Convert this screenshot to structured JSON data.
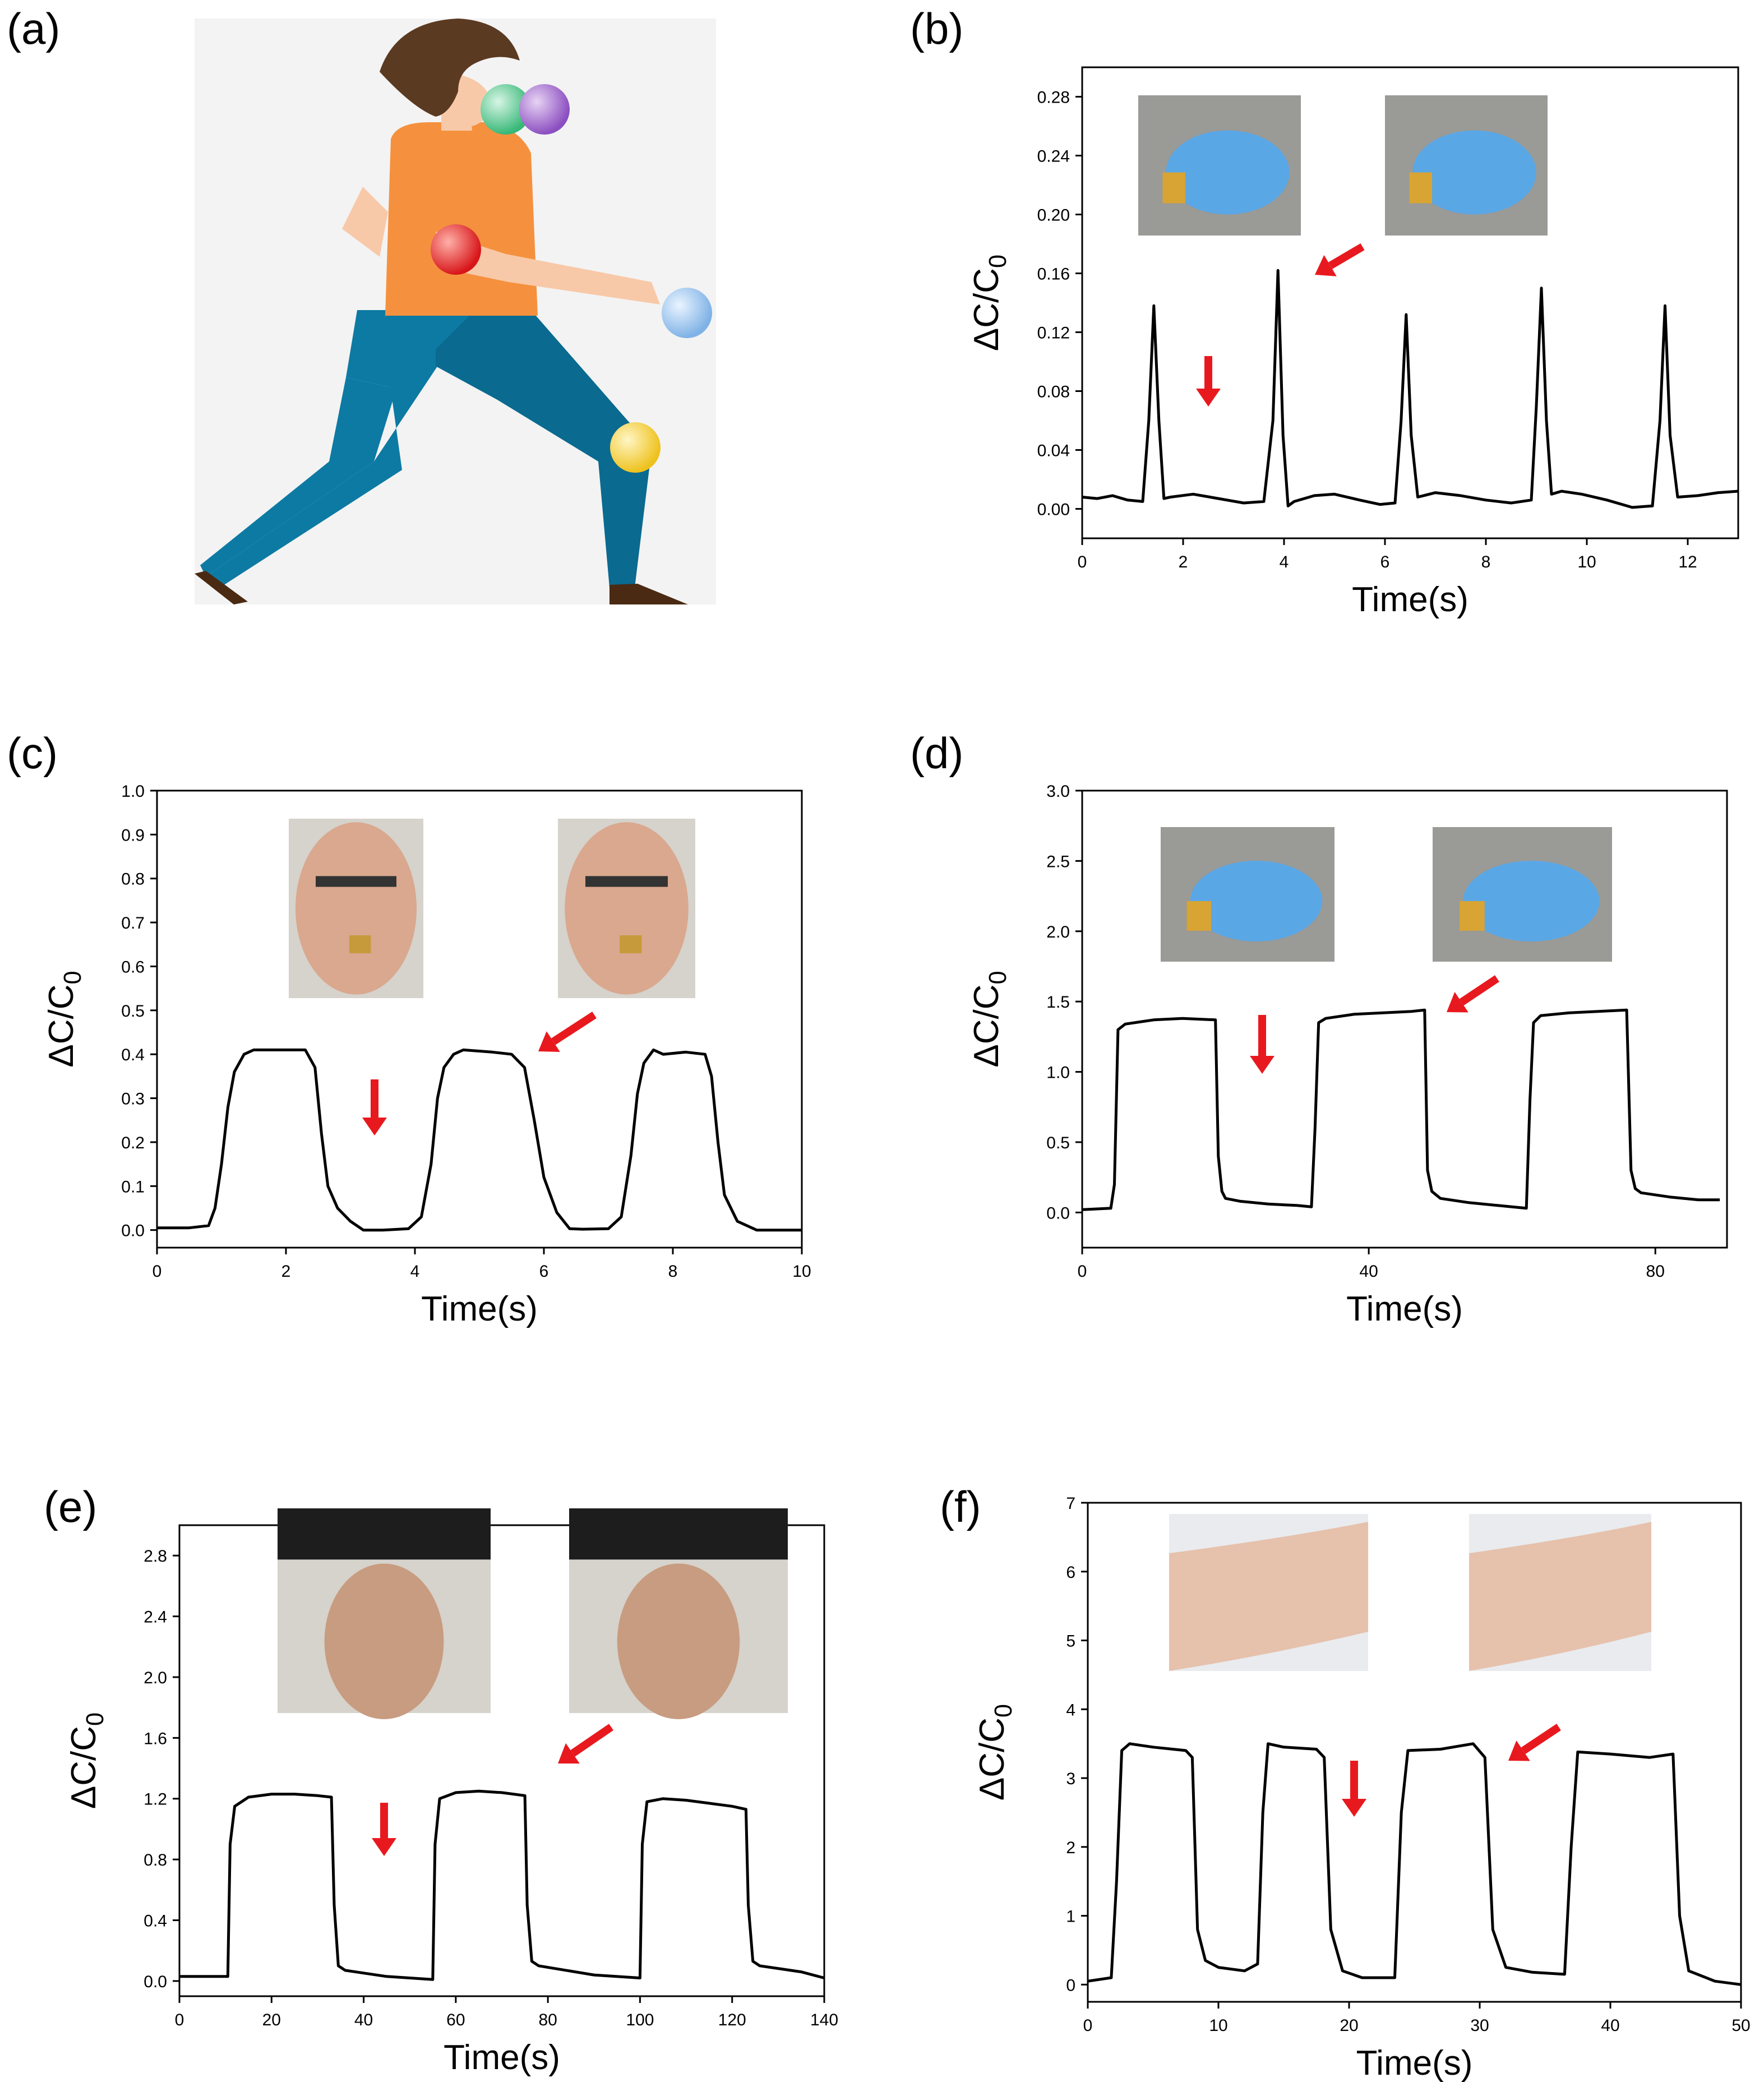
{
  "panel_labels": {
    "a": "(a)",
    "b": "(b)",
    "c": "(c)",
    "d": "(d)",
    "e": "(e)",
    "f": "(f)"
  },
  "colors": {
    "axis": "#000000",
    "trace": "#000000",
    "arrow": "#e8191e",
    "shirt": "#f5913e",
    "pants": "#0d7aa3",
    "pants_dark": "#0a6a90",
    "skin": "#f8c9a8",
    "hair": "#5b3a22",
    "shoe": "#4a2a12",
    "sphere_green": "#55c98a",
    "sphere_purple": "#a36ad0",
    "sphere_red": "#e52a2a",
    "sphere_blue": "#9cc7ee",
    "sphere_yellow": "#f5d545",
    "glove": "#5aa7e6",
    "skin_photo": "#d9a88e"
  },
  "chart_data": [
    {
      "id": "b",
      "type": "line",
      "xlabel": "Time(s)",
      "ylabel_main": "ΔC/C",
      "ylabel_sub": "0",
      "xlim": [
        0,
        13
      ],
      "ylim": [
        -0.02,
        0.3
      ],
      "xticks": [
        0,
        2,
        4,
        6,
        8,
        10,
        12
      ],
      "xtick_labels": [
        "0",
        "2",
        "4",
        "6",
        "8",
        "10",
        "12"
      ],
      "yticks": [
        0,
        0.04,
        0.08,
        0.12,
        0.16,
        0.2,
        0.24,
        0.28
      ],
      "ytick_labels": [
        "0.00",
        "0.04",
        "0.08",
        "0.12",
        "0.16",
        "0.20",
        "0.24",
        "0.28"
      ],
      "series": [
        {
          "x": [
            0,
            0.3,
            0.6,
            0.9,
            1.2,
            1.32,
            1.42,
            1.52,
            1.62,
            1.75,
            2.2,
            2.7,
            3.2,
            3.6,
            3.78,
            3.88,
            3.98,
            4.08,
            4.2,
            4.6,
            5.0,
            5.5,
            5.9,
            6.2,
            6.32,
            6.42,
            6.52,
            6.65,
            7.0,
            7.5,
            8.0,
            8.5,
            8.9,
            9.0,
            9.1,
            9.2,
            9.3,
            9.5,
            9.9,
            10.4,
            10.9,
            11.3,
            11.45,
            11.55,
            11.65,
            11.8,
            12.2,
            12.6,
            13.0
          ],
          "y": [
            0.008,
            0.007,
            0.009,
            0.006,
            0.005,
            0.06,
            0.138,
            0.06,
            0.007,
            0.008,
            0.01,
            0.007,
            0.004,
            0.005,
            0.06,
            0.162,
            0.05,
            0.002,
            0.005,
            0.009,
            0.01,
            0.006,
            0.003,
            0.004,
            0.06,
            0.132,
            0.05,
            0.008,
            0.011,
            0.009,
            0.006,
            0.004,
            0.006,
            0.07,
            0.15,
            0.06,
            0.01,
            0.012,
            0.01,
            0.006,
            0.001,
            0.002,
            0.06,
            0.138,
            0.05,
            0.008,
            0.009,
            0.011,
            0.012
          ]
        }
      ],
      "arrows": [
        "down",
        "diagonal"
      ]
    },
    {
      "id": "c",
      "type": "line",
      "xlabel": "Time(s)",
      "ylabel_main": "ΔC/C",
      "ylabel_sub": "0",
      "xlim": [
        0,
        10
      ],
      "ylim": [
        -0.04,
        1.0
      ],
      "xticks": [
        0,
        2,
        4,
        6,
        8,
        10
      ],
      "xtick_labels": [
        "0",
        "2",
        "4",
        "6",
        "8",
        "10"
      ],
      "yticks": [
        0,
        0.1,
        0.2,
        0.3,
        0.4,
        0.5,
        0.6,
        0.7,
        0.8,
        0.9,
        1.0
      ],
      "ytick_labels": [
        "0.0",
        "0.1",
        "0.2",
        "0.3",
        "0.4",
        "0.5",
        "0.6",
        "0.7",
        "0.8",
        "0.9",
        "1.0"
      ],
      "series": [
        {
          "x": [
            0,
            0.5,
            0.8,
            0.9,
            1.0,
            1.1,
            1.2,
            1.35,
            1.5,
            2.0,
            2.3,
            2.45,
            2.55,
            2.65,
            2.8,
            3.0,
            3.2,
            3.5,
            3.9,
            4.1,
            4.25,
            4.35,
            4.45,
            4.6,
            4.75,
            5.2,
            5.5,
            5.7,
            5.85,
            6.0,
            6.2,
            6.4,
            6.6,
            7.0,
            7.2,
            7.35,
            7.45,
            7.55,
            7.7,
            7.85,
            8.2,
            8.5,
            8.6,
            8.7,
            8.8,
            9.0,
            9.3,
            10.0
          ],
          "y": [
            0.005,
            0.005,
            0.01,
            0.05,
            0.15,
            0.28,
            0.36,
            0.4,
            0.41,
            0.41,
            0.41,
            0.37,
            0.22,
            0.1,
            0.05,
            0.02,
            0.0,
            0.0,
            0.003,
            0.03,
            0.15,
            0.3,
            0.37,
            0.4,
            0.41,
            0.405,
            0.4,
            0.37,
            0.25,
            0.12,
            0.04,
            0.003,
            0.002,
            0.003,
            0.03,
            0.17,
            0.31,
            0.38,
            0.41,
            0.4,
            0.405,
            0.4,
            0.35,
            0.2,
            0.08,
            0.02,
            0.0,
            0.0
          ]
        }
      ],
      "arrows": [
        "down",
        "diagonal"
      ]
    },
    {
      "id": "d",
      "type": "line",
      "xlabel": "Time(s)",
      "ylabel_main": "ΔC/C",
      "ylabel_sub": "0",
      "xlim": [
        0,
        90
      ],
      "ylim": [
        -0.25,
        3.0
      ],
      "xticks": [
        0,
        40,
        80
      ],
      "xtick_labels": [
        "0",
        "40",
        "80"
      ],
      "yticks": [
        0,
        0.5,
        1.0,
        1.5,
        2.0,
        2.5,
        3.0
      ],
      "ytick_labels": [
        "0.0",
        "0.5",
        "1.0",
        "1.5",
        "2.0",
        "2.5",
        "3.0"
      ],
      "series": [
        {
          "x": [
            0,
            4,
            4.5,
            5,
            6,
            10,
            14,
            18.6,
            19,
            19.5,
            20,
            22,
            26,
            30,
            32,
            32.5,
            33,
            34,
            38,
            42,
            46,
            47.8,
            48.2,
            48.8,
            50,
            54,
            58,
            62,
            62.5,
            63,
            64,
            68,
            72,
            76,
            76.6,
            77.2,
            78,
            82,
            86,
            89
          ],
          "y": [
            0.02,
            0.03,
            0.2,
            1.3,
            1.34,
            1.37,
            1.38,
            1.37,
            0.4,
            0.15,
            0.1,
            0.08,
            0.06,
            0.05,
            0.04,
            0.6,
            1.35,
            1.38,
            1.41,
            1.42,
            1.43,
            1.44,
            0.3,
            0.15,
            0.1,
            0.07,
            0.05,
            0.03,
            0.8,
            1.35,
            1.4,
            1.42,
            1.43,
            1.44,
            0.3,
            0.17,
            0.14,
            0.11,
            0.09,
            0.09
          ]
        }
      ],
      "arrows": [
        "down",
        "diagonal"
      ]
    },
    {
      "id": "e",
      "type": "line",
      "xlabel": "Time(s)",
      "ylabel_main": "ΔC/C",
      "ylabel_sub": "0",
      "xlim": [
        0,
        140
      ],
      "ylim": [
        -0.1,
        3.0
      ],
      "xticks": [
        0,
        20,
        40,
        60,
        80,
        100,
        120,
        140
      ],
      "xtick_labels": [
        "0",
        "20",
        "40",
        "60",
        "80",
        "100",
        "120",
        "140"
      ],
      "yticks": [
        0,
        0.4,
        0.8,
        1.2,
        1.6,
        2.0,
        2.4,
        2.8
      ],
      "ytick_labels": [
        "0.0",
        "0.4",
        "0.8",
        "1.2",
        "1.6",
        "2.0",
        "2.4",
        "2.8"
      ],
      "series": [
        {
          "x": [
            0,
            5,
            10.5,
            11,
            12,
            15,
            20,
            25,
            30,
            33,
            33.6,
            34.5,
            36,
            45,
            55,
            55.5,
            56.5,
            60,
            65,
            70,
            75,
            75.5,
            76.5,
            78,
            90,
            100,
            100.5,
            101.5,
            105,
            110,
            115,
            120,
            123,
            123.5,
            124.5,
            126,
            135,
            140
          ],
          "y": [
            0.03,
            0.03,
            0.03,
            0.9,
            1.15,
            1.21,
            1.23,
            1.23,
            1.22,
            1.21,
            0.5,
            0.1,
            0.07,
            0.03,
            0.01,
            0.9,
            1.2,
            1.24,
            1.25,
            1.24,
            1.22,
            0.5,
            0.13,
            0.1,
            0.04,
            0.02,
            0.9,
            1.18,
            1.2,
            1.19,
            1.17,
            1.15,
            1.13,
            0.5,
            0.13,
            0.1,
            0.06,
            0.02
          ]
        }
      ],
      "arrows": [
        "down",
        "diagonal"
      ]
    },
    {
      "id": "f",
      "type": "line",
      "xlabel": "Time(s)",
      "ylabel_main": "ΔC/C",
      "ylabel_sub": "0",
      "xlim": [
        0,
        50
      ],
      "ylim": [
        -0.25,
        7.0
      ],
      "xticks": [
        0,
        10,
        20,
        30,
        40,
        50
      ],
      "xtick_labels": [
        "0",
        "10",
        "20",
        "30",
        "40",
        "50"
      ],
      "yticks": [
        0,
        1,
        2,
        3,
        4,
        5,
        6,
        7
      ],
      "ytick_labels": [
        "0",
        "1",
        "2",
        "3",
        "4",
        "5",
        "6",
        "7"
      ],
      "series": [
        {
          "x": [
            0,
            1.8,
            2.2,
            2.6,
            3.2,
            5,
            7.5,
            8,
            8.4,
            9,
            10,
            12,
            13,
            13.4,
            13.8,
            15,
            17.5,
            18.1,
            18.6,
            19.5,
            21,
            23.5,
            24,
            24.5,
            27,
            29.5,
            30.4,
            31,
            32,
            34,
            36.5,
            37,
            37.5,
            40,
            43,
            44.8,
            45.3,
            46,
            48,
            50
          ],
          "y": [
            0.05,
            0.1,
            1.5,
            3.4,
            3.5,
            3.45,
            3.4,
            3.3,
            0.8,
            0.35,
            0.25,
            0.2,
            0.3,
            2.5,
            3.5,
            3.45,
            3.42,
            3.3,
            0.8,
            0.2,
            0.1,
            0.1,
            2.5,
            3.4,
            3.42,
            3.5,
            3.3,
            0.8,
            0.25,
            0.18,
            0.15,
            2.0,
            3.38,
            3.35,
            3.3,
            3.35,
            1.0,
            0.2,
            0.05,
            0.0
          ]
        }
      ],
      "arrows": [
        "down",
        "diagonal"
      ]
    }
  ]
}
